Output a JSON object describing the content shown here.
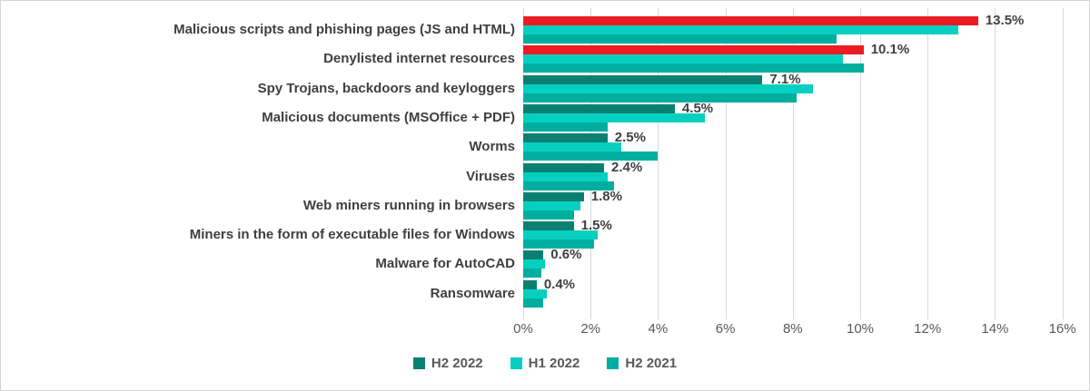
{
  "chart_data": {
    "type": "bar",
    "orientation": "horizontal",
    "title": "",
    "categories": [
      "Malicious scripts and phishing pages (JS and HTML)",
      "Denylisted internet resources",
      "Spy Trojans, backdoors and keyloggers",
      "Malicious documents (MSOffice + PDF)",
      "Worms",
      "Viruses",
      "Web miners running in browsers",
      "Miners in the form of executable files for Windows",
      "Malware for AutoCAD",
      "Ransomware"
    ],
    "series": [
      {
        "name": "H2 2022",
        "color": "#0b8072",
        "values": [
          13.5,
          10.1,
          7.1,
          4.5,
          2.5,
          2.4,
          1.8,
          1.5,
          0.6,
          0.4
        ]
      },
      {
        "name": "H1 2022",
        "color": "#06cfc0",
        "values": [
          12.9,
          9.5,
          8.6,
          5.4,
          2.9,
          2.5,
          1.7,
          2.2,
          0.65,
          0.7
        ]
      },
      {
        "name": "H2 2021",
        "color": "#00aea0",
        "values": [
          9.3,
          10.1,
          8.1,
          2.5,
          4.0,
          2.7,
          1.5,
          2.1,
          0.55,
          0.6
        ]
      }
    ],
    "highlight": {
      "series_index": 0,
      "rows": [
        0,
        1
      ],
      "color": "#ec1c24"
    },
    "data_labels": [
      "13.5%",
      "10.1%",
      "7.1%",
      "4.5%",
      "2.5%",
      "2.4%",
      "1.8%",
      "1.5%",
      "0.6%",
      "0.4%"
    ],
    "xlim": [
      0,
      16
    ],
    "x_ticks": [
      "0%",
      "2%",
      "4%",
      "6%",
      "8%",
      "10%",
      "12%",
      "14%",
      "16%"
    ],
    "grid": true,
    "legend_position": "bottom",
    "legend": [
      "H2 2022",
      "H1 2022",
      "H2 2021"
    ]
  },
  "colors": {
    "gridline": "#d9d9d9",
    "category_text": "#3f3f3f",
    "value_text": "#404040",
    "axis_text": "#595959",
    "frame_border": "#d6d6d6"
  }
}
